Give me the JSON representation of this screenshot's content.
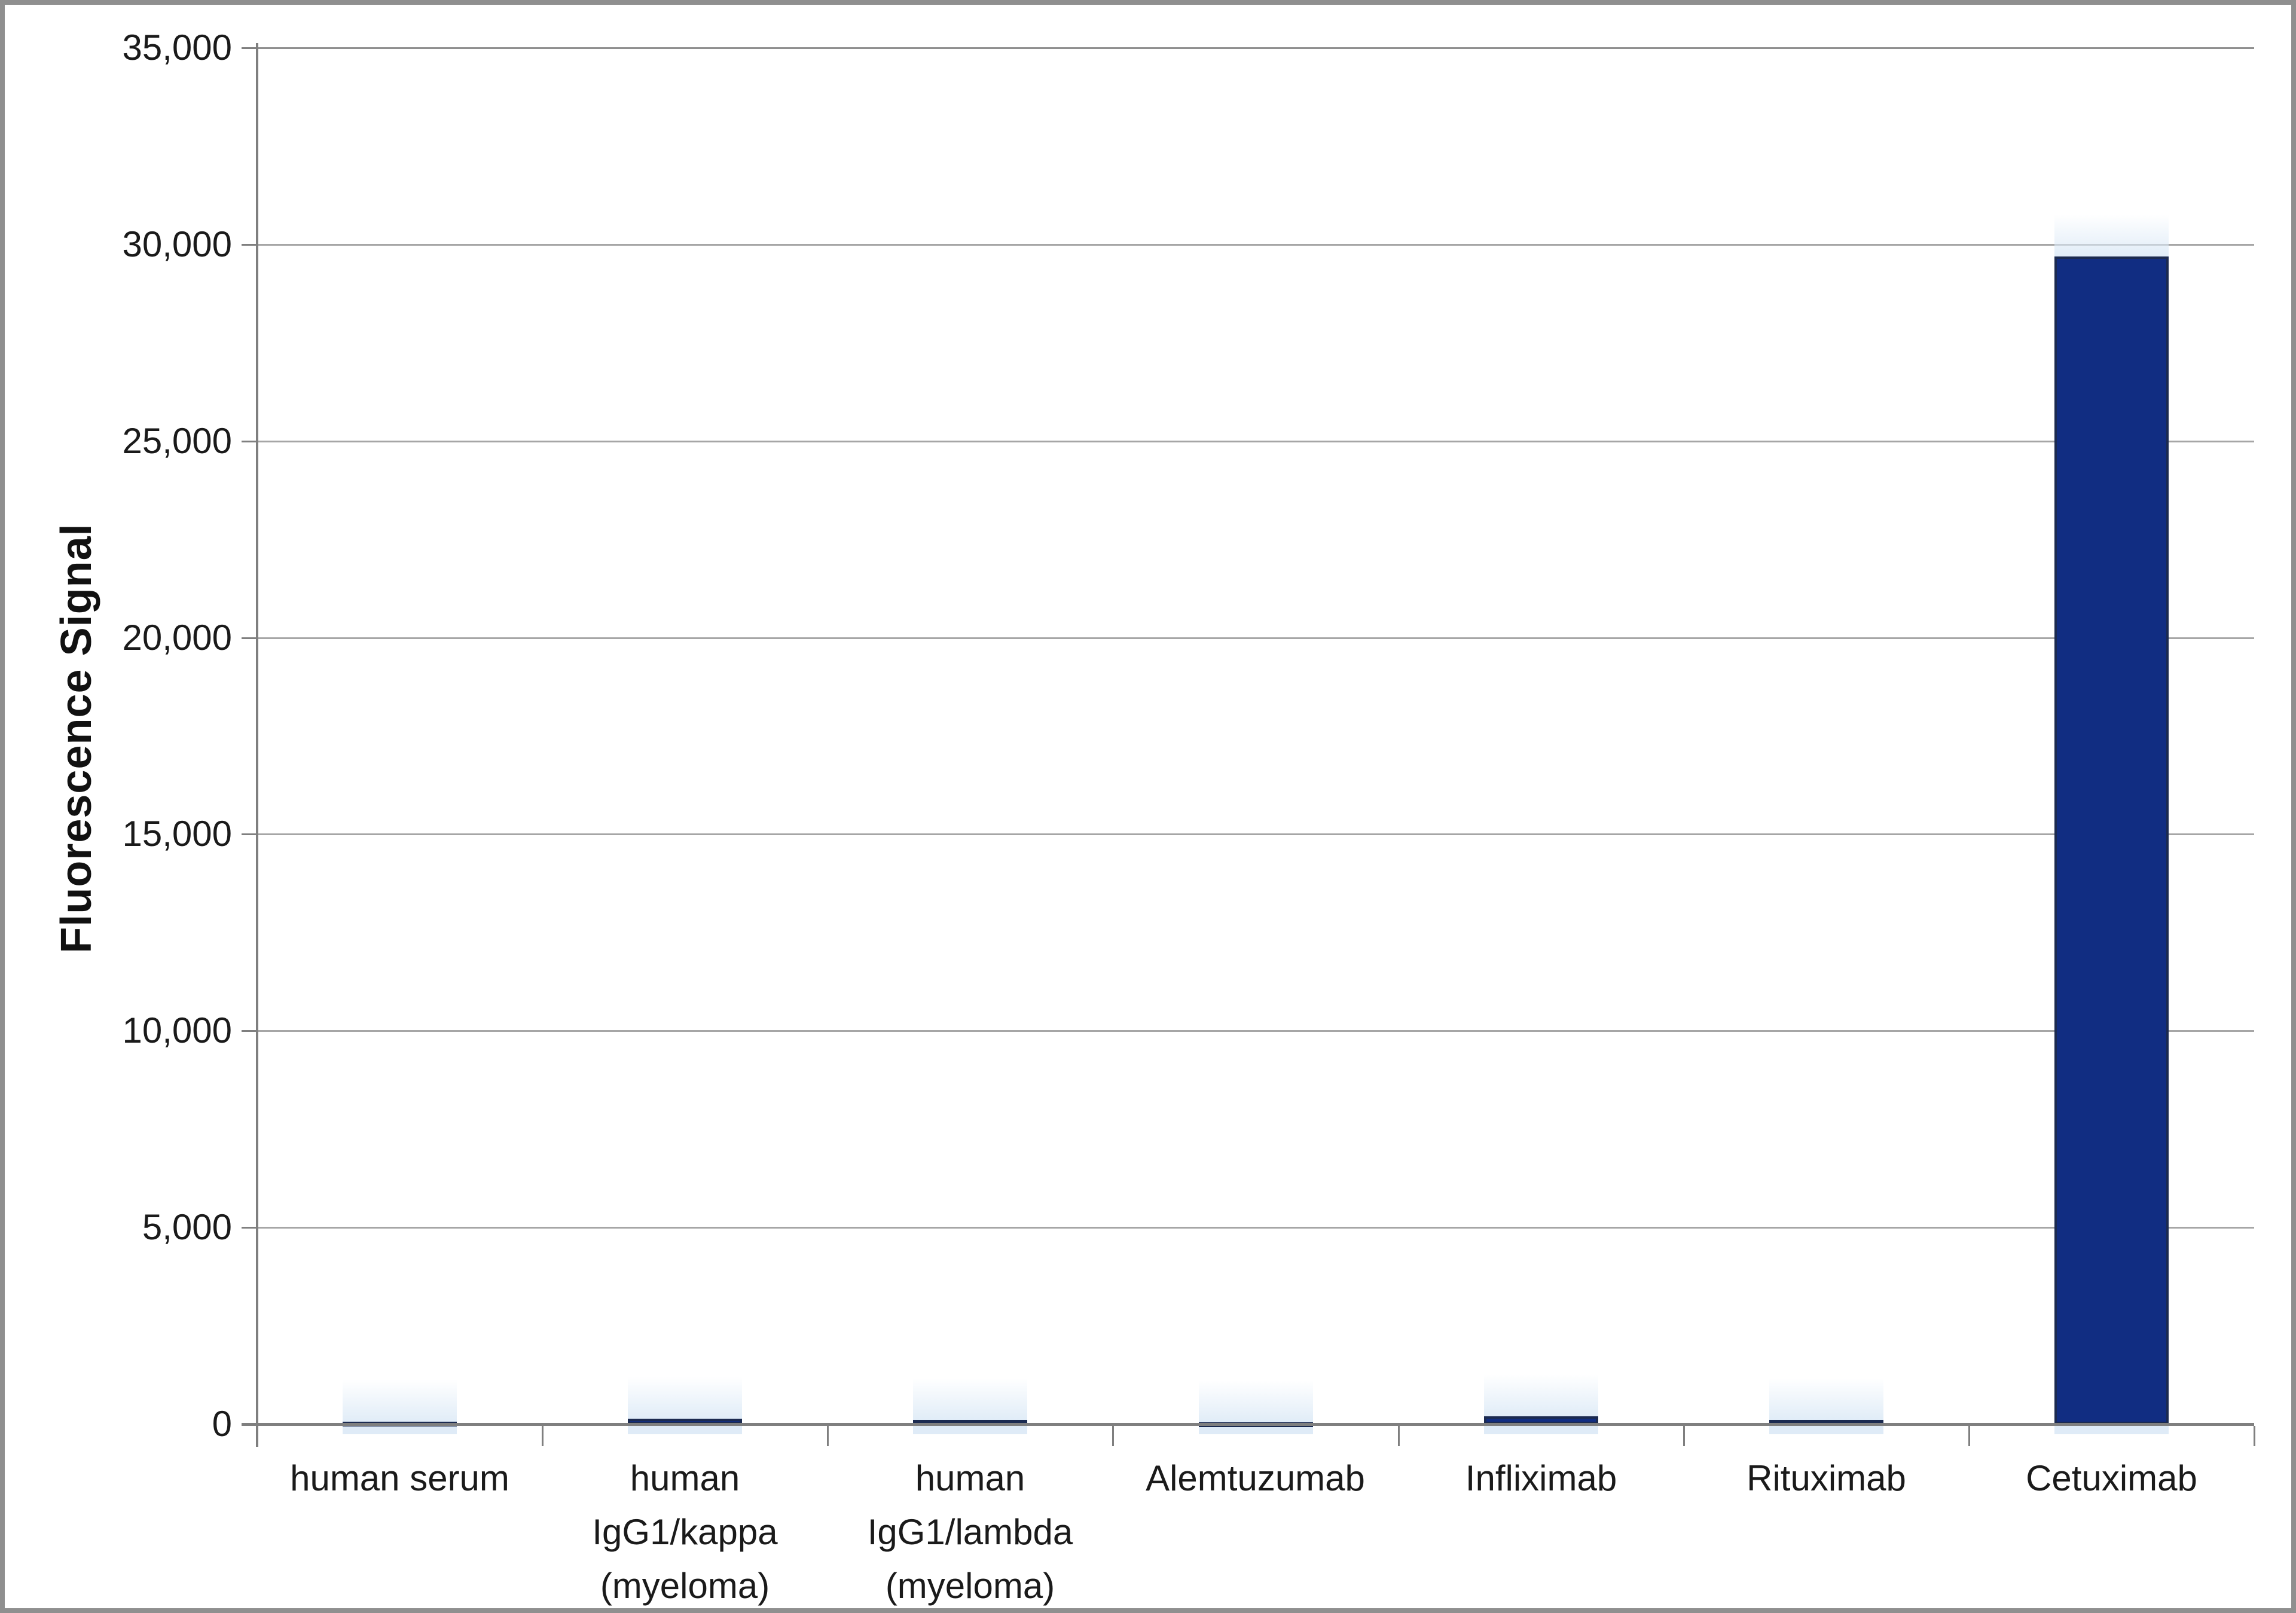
{
  "chart_data": {
    "type": "bar",
    "title": "",
    "ylabel": "Fluorescence Signal",
    "xlabel": "",
    "ylim": [
      0,
      35000
    ],
    "ytick_interval": 5000,
    "ytick_labels": [
      "35,000",
      "30,000",
      "25,000",
      "20,000",
      "15,000",
      "10,000",
      "5,000",
      "0"
    ],
    "categories": [
      "human serum",
      "human IgG1/kappa (myeloma)",
      "human IgG1/lambda (myeloma)",
      "Alemtuzumab",
      "Infliximab",
      "Rituximab",
      "Cetuximab"
    ],
    "category_label_lines": [
      [
        "human serum"
      ],
      [
        "human",
        "IgG1/kappa",
        "(myeloma)"
      ],
      [
        "human",
        "IgG1/lambda",
        "(myeloma)"
      ],
      [
        "Alemtuzumab"
      ],
      [
        "Infliximab"
      ],
      [
        "Rituximab"
      ],
      [
        "Cetuximab"
      ]
    ],
    "values": [
      60,
      140,
      100,
      45,
      200,
      100,
      29700
    ],
    "grid": "horizontal",
    "legend": "none",
    "colors": {
      "bar_fill": "#112d82",
      "bar_border": "#1b2a50",
      "gridline": "#a6a6a6",
      "axis": "#7f7f7f",
      "text": "#1a1a1a",
      "frame": "#8f8f8f",
      "background": "#ffffff"
    }
  }
}
